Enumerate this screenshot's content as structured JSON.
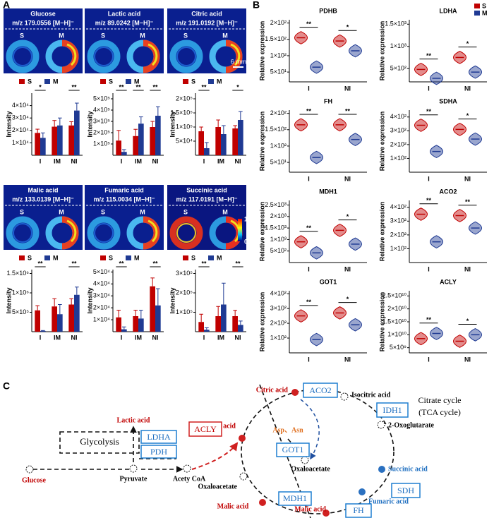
{
  "panel_labels": [
    "A",
    "B",
    "C"
  ],
  "ion_images": {
    "sample_labels": [
      "S",
      "M"
    ],
    "scale_bar": "6 mm",
    "colorbar": [
      "100%",
      "0"
    ],
    "items": [
      {
        "name": "Glucose",
        "mz": "m/z 179.0556  [M−H]⁻"
      },
      {
        "name": "Lactic acid",
        "mz": "m/z 89.0242  [M−H]⁻"
      },
      {
        "name": "Citric acid",
        "mz": "m/z 191.0192  [M−H]⁻"
      },
      {
        "name": "Malic acid",
        "mz": "m/z 133.0139  [M−H]⁻"
      },
      {
        "name": "Fumaric acid",
        "mz": "m/z 115.0034  [M−H]⁻"
      },
      {
        "name": "Succinic acid",
        "mz": "m/z 117.0191  [M−H]⁻"
      }
    ]
  },
  "chart_data": [
    {
      "type": "bar",
      "y_label": "Intensity",
      "categories": [
        "I",
        "IM",
        "NI"
      ],
      "ylim": [
        0,
        50000
      ],
      "yticks": [
        {
          "value": 10000,
          "label": "1×10⁴"
        },
        {
          "value": 20000,
          "label": "2×10⁴"
        },
        {
          "value": 30000,
          "label": "3×10⁴"
        },
        {
          "value": 40000,
          "label": "4×10⁴"
        }
      ],
      "significance": [
        "*",
        null,
        "**"
      ],
      "series": [
        {
          "name": "S",
          "color": "#c00000",
          "values": [
            18000,
            23000,
            24000
          ],
          "errors": [
            3000,
            5000,
            3000
          ]
        },
        {
          "name": "M",
          "color": "#1f3a93",
          "values": [
            14000,
            24000,
            36000
          ],
          "errors": [
            4000,
            6000,
            6000
          ]
        }
      ]
    },
    {
      "type": "bar",
      "y_label": "Intensity",
      "categories": [
        "I",
        "IM",
        "NI"
      ],
      "ylim": [
        0,
        550000
      ],
      "yticks": [
        {
          "value": 100000,
          "label": "1×10⁵"
        },
        {
          "value": 200000,
          "label": "2×10⁵"
        },
        {
          "value": 300000,
          "label": "3×10⁵"
        },
        {
          "value": 400000,
          "label": "4×10⁵"
        },
        {
          "value": 500000,
          "label": "5×10⁵"
        }
      ],
      "significance": [
        "**",
        "**",
        "**"
      ],
      "series": [
        {
          "name": "S",
          "color": "#c00000",
          "values": [
            130000,
            170000,
            250000
          ],
          "errors": [
            90000,
            60000,
            50000
          ]
        },
        {
          "name": "M",
          "color": "#1f3a93",
          "values": [
            30000,
            280000,
            350000
          ],
          "errors": [
            20000,
            60000,
            80000
          ]
        }
      ]
    },
    {
      "type": "bar",
      "y_label": "Intensity",
      "categories": [
        "I",
        "IM",
        "NI"
      ],
      "ylim": [
        0,
        220000
      ],
      "yticks": [
        {
          "value": 50000,
          "label": "5×10⁴"
        },
        {
          "value": 100000,
          "label": "1×10⁵"
        },
        {
          "value": 150000,
          "label": "1.5×10⁵"
        },
        {
          "value": 200000,
          "label": "2×10⁵"
        }
      ],
      "significance": [
        "**",
        null,
        "*"
      ],
      "series": [
        {
          "name": "S",
          "color": "#c00000",
          "values": [
            85000,
            100000,
            95000
          ],
          "errors": [
            15000,
            25000,
            10000
          ]
        },
        {
          "name": "M",
          "color": "#1f3a93",
          "values": [
            25000,
            75000,
            125000
          ],
          "errors": [
            20000,
            30000,
            30000
          ]
        }
      ]
    },
    {
      "type": "bar",
      "y_label": "Intensity",
      "categories": [
        "I",
        "IM",
        "NI"
      ],
      "ylim": [
        0,
        1600000
      ],
      "yticks": [
        {
          "value": 500000,
          "label": "5×10⁵"
        },
        {
          "value": 1000000,
          "label": "1×10⁶"
        },
        {
          "value": 1500000,
          "label": "1.5×10⁶"
        }
      ],
      "significance": [
        "**",
        null,
        "**"
      ],
      "series": [
        {
          "name": "S",
          "color": "#c00000",
          "values": [
            550000,
            650000,
            700000
          ],
          "errors": [
            120000,
            200000,
            150000
          ]
        },
        {
          "name": "M",
          "color": "#1f3a93",
          "values": [
            20000,
            450000,
            950000
          ],
          "errors": [
            10000,
            250000,
            200000
          ]
        }
      ]
    },
    {
      "type": "bar",
      "y_label": "Intensity",
      "categories": [
        "I",
        "IM",
        "NI"
      ],
      "ylim": [
        0,
        52000
      ],
      "yticks": [
        {
          "value": 10000,
          "label": "1×10⁴"
        },
        {
          "value": 20000,
          "label": "2×10⁴"
        },
        {
          "value": 30000,
          "label": "3×10⁴"
        },
        {
          "value": 40000,
          "label": "4×10⁴"
        },
        {
          "value": 50000,
          "label": "5×10⁴"
        }
      ],
      "significance": [
        "**",
        null,
        "**"
      ],
      "series": [
        {
          "name": "S",
          "color": "#c00000",
          "values": [
            12000,
            13000,
            38000
          ],
          "errors": [
            6000,
            5000,
            7000
          ]
        },
        {
          "name": "M",
          "color": "#1f3a93",
          "values": [
            2000,
            11000,
            22000
          ],
          "errors": [
            2000,
            7000,
            14000
          ]
        }
      ]
    },
    {
      "type": "bar",
      "y_label": "Intensity",
      "categories": [
        "I",
        "IM",
        "NI"
      ],
      "ylim": [
        0,
        320000
      ],
      "yticks": [
        {
          "value": 100000,
          "label": "1×10⁵"
        },
        {
          "value": 200000,
          "label": "2×10⁵"
        },
        {
          "value": 300000,
          "label": "3×10⁵"
        }
      ],
      "significance": [
        "**",
        null,
        "**"
      ],
      "series": [
        {
          "name": "S",
          "color": "#c00000",
          "values": [
            50000,
            80000,
            80000
          ],
          "errors": [
            40000,
            50000,
            30000
          ]
        },
        {
          "name": "M",
          "color": "#1f3a93",
          "values": [
            10000,
            140000,
            35000
          ],
          "errors": [
            10000,
            110000,
            20000
          ]
        }
      ]
    },
    {
      "type": "violin",
      "title": "PDHB",
      "y_label": "Relative expression",
      "categories": [
        "I",
        "NI"
      ],
      "ylim": [
        20,
        210
      ],
      "yticks": [
        {
          "value": 50,
          "label": "5×10¹"
        },
        {
          "value": 100,
          "label": "1×10²"
        },
        {
          "value": 150,
          "label": "1.5×10²"
        },
        {
          "value": 200,
          "label": "2×10²"
        }
      ],
      "significance": [
        "**",
        "*"
      ],
      "series": [
        {
          "name": "S",
          "color": "#c00000",
          "values": [
            155,
            145
          ]
        },
        {
          "name": "M",
          "color": "#1f3a93",
          "values": [
            65,
            115
          ]
        }
      ]
    },
    {
      "type": "violin",
      "title": "LDHA",
      "y_label": "Relative expression",
      "categories": [
        "I",
        "NI"
      ],
      "ylim": [
        200,
        1600
      ],
      "yticks": [
        {
          "value": 500,
          "label": "5×10²"
        },
        {
          "value": 1000,
          "label": "1×10³"
        },
        {
          "value": 1500,
          "label": "1.5×10³"
        }
      ],
      "significance": [
        "**",
        "*"
      ],
      "series": [
        {
          "name": "S",
          "color": "#c00000",
          "values": [
            480,
            750
          ]
        },
        {
          "name": "M",
          "color": "#1f3a93",
          "values": [
            280,
            420
          ]
        }
      ]
    },
    {
      "type": "violin",
      "title": "FH",
      "y_label": "Relative expression",
      "categories": [
        "I",
        "NI"
      ],
      "ylim": [
        20,
        210
      ],
      "yticks": [
        {
          "value": 50,
          "label": "5×10¹"
        },
        {
          "value": 100,
          "label": "1×10²"
        },
        {
          "value": 150,
          "label": "1.5×10²"
        },
        {
          "value": 200,
          "label": "2×10²"
        }
      ],
      "significance": [
        "**",
        "**"
      ],
      "series": [
        {
          "name": "S",
          "color": "#c00000",
          "values": [
            165,
            165
          ]
        },
        {
          "name": "M",
          "color": "#1f3a93",
          "values": [
            65,
            120
          ]
        }
      ]
    },
    {
      "type": "violin",
      "title": "SDHA",
      "y_label": "Relative expression",
      "categories": [
        "I",
        "NI"
      ],
      "ylim": [
        0,
        450
      ],
      "yticks": [
        {
          "value": 100,
          "label": "1×10²"
        },
        {
          "value": 200,
          "label": "2×10²"
        },
        {
          "value": 300,
          "label": "3×10²"
        },
        {
          "value": 400,
          "label": "4×10²"
        }
      ],
      "significance": [
        "**",
        "*"
      ],
      "series": [
        {
          "name": "S",
          "color": "#c00000",
          "values": [
            340,
            310
          ]
        },
        {
          "name": "M",
          "color": "#1f3a93",
          "values": [
            150,
            240
          ]
        }
      ]
    },
    {
      "type": "violin",
      "title": "MDH1",
      "y_label": "Relative expression",
      "categories": [
        "I",
        "NI"
      ],
      "ylim": [
        0,
        2700
      ],
      "yticks": [
        {
          "value": 500,
          "label": "5×10²"
        },
        {
          "value": 1000,
          "label": "1×10³"
        },
        {
          "value": 1500,
          "label": "1.5×10³"
        },
        {
          "value": 2000,
          "label": "2×10³"
        },
        {
          "value": 2500,
          "label": "2.5×10³"
        }
      ],
      "significance": [
        "**",
        "*"
      ],
      "series": [
        {
          "name": "S",
          "color": "#c00000",
          "values": [
            900,
            1400
          ]
        },
        {
          "name": "M",
          "color": "#1f3a93",
          "values": [
            420,
            800
          ]
        }
      ]
    },
    {
      "type": "violin",
      "title": "ACO2",
      "y_label": "Relative expression",
      "categories": [
        "I",
        "NI"
      ],
      "ylim": [
        0,
        450
      ],
      "yticks": [
        {
          "value": 100,
          "label": "1×10²"
        },
        {
          "value": 200,
          "label": "2×10²"
        },
        {
          "value": 300,
          "label": "3×10²"
        },
        {
          "value": 400,
          "label": "4×10²"
        }
      ],
      "significance": [
        "**",
        "**"
      ],
      "series": [
        {
          "name": "S",
          "color": "#c00000",
          "values": [
            350,
            340
          ]
        },
        {
          "name": "M",
          "color": "#1f3a93",
          "values": [
            150,
            250
          ]
        }
      ]
    },
    {
      "type": "violin",
      "title": "GOT1",
      "y_label": "Relative expression",
      "categories": [
        "I",
        "NI"
      ],
      "ylim": [
        0,
        420
      ],
      "yticks": [
        {
          "value": 100,
          "label": "1×10²"
        },
        {
          "value": 200,
          "label": "2×10²"
        },
        {
          "value": 300,
          "label": "3×10²"
        },
        {
          "value": 400,
          "label": "4×10²"
        }
      ],
      "significance": [
        "**",
        "*"
      ],
      "series": [
        {
          "name": "S",
          "color": "#c00000",
          "values": [
            250,
            270
          ]
        },
        {
          "name": "M",
          "color": "#1f3a93",
          "values": [
            90,
            190
          ]
        }
      ]
    },
    {
      "type": "violin",
      "title": "ACLY",
      "y_label": "Relative expression",
      "categories": [
        "I",
        "NI"
      ],
      "ylim": [
        3000000000,
        27000000000
      ],
      "yticks": [
        {
          "value": 5000000000,
          "label": "5×10⁹"
        },
        {
          "value": 10000000000,
          "label": "1×10¹⁰"
        },
        {
          "value": 15000000000,
          "label": "1.5×10¹⁰"
        },
        {
          "value": 20000000000,
          "label": "2×10¹⁰"
        },
        {
          "value": 25000000000,
          "label": "2.5×10¹⁰"
        }
      ],
      "significance": [
        "**",
        "*"
      ],
      "series": [
        {
          "name": "S",
          "color": "#c00000",
          "values": [
            8500000000,
            7500000000
          ]
        },
        {
          "name": "M",
          "color": "#1f3a93",
          "values": [
            10500000000,
            10000000000
          ]
        }
      ]
    }
  ],
  "diagram": {
    "title": [
      "Citrate cycle",
      "(TCA cycle)"
    ],
    "metabolites": {
      "citric_top": "Citric acid",
      "isocitric": "Isocitric acid",
      "oxoglutarate": "2-Oxoglutarate",
      "succinic": "Succinic acid",
      "fumaric": "Fumaric acid",
      "malic_bottom": "Malic acid",
      "oxaloacetate_center": "Oxaloacetate",
      "asp": "Asp、Asn",
      "citric_left": "Citric acid",
      "lactic": "Lactic acid",
      "glucose": "Glucose",
      "pyruvate": "Pyruvate",
      "acetyl": "Acety CoA",
      "oxaloacetate_left": "Oxaloacetate",
      "malic_left": "Malic acid"
    },
    "enzymes": {
      "aco2": "ACO2",
      "idh1": "IDH1",
      "sdh": "SDH",
      "fh": "FH",
      "mdh1": "MDH1",
      "got1": "GOT1",
      "acly": "ACLY",
      "ldha": "LDHA",
      "pdh": "PDH"
    },
    "pathway": "Glycolysis"
  }
}
